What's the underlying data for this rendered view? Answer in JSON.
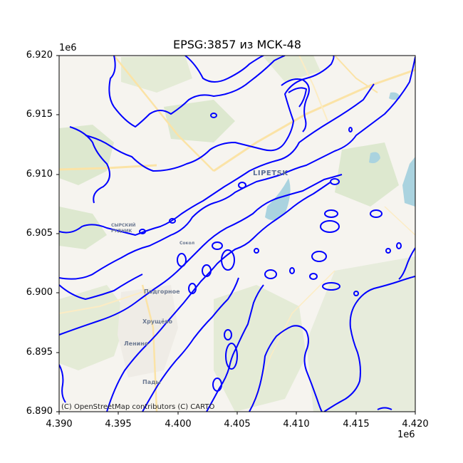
{
  "title": "EPSG:3857 из МСК-48",
  "axes": {
    "y_offset": "1e6",
    "x_offset": "1e6",
    "x_ticks": [
      "4.390",
      "4.395",
      "4.400",
      "4.405",
      "4.410",
      "4.415",
      "4.420"
    ],
    "y_ticks": [
      "6.920",
      "6.915",
      "6.910",
      "6.905",
      "6.900",
      "6.895",
      "6.890"
    ]
  },
  "attribution": "(C) OpenStreetMap contributors (C) CARTO",
  "places": {
    "lipetsk": "LIPETSK",
    "syrskiy": "СЫРСКИЙ РУДНИК",
    "podgornoe": "Подгорное",
    "khrushchevo": "Хрущёво",
    "lenino": "Ленино",
    "pady": "Пады",
    "sokol": "Сокол"
  },
  "colors": {
    "contour": "#0000ff",
    "background": "#f6f4ef",
    "green": "#dde8cf",
    "water": "#aad3df",
    "road": "#fbe3a6"
  }
}
